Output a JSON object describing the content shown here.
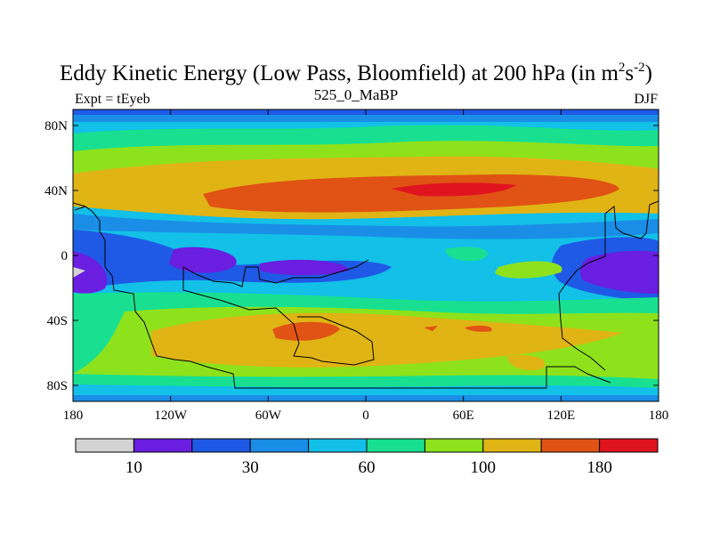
{
  "title": {
    "main": "Eddy Kinetic Energy (Low Pass, Bloomfield) at 200 hPa (in m",
    "exp1": "2",
    "mid": "s",
    "exp2": "-2",
    "close": ")"
  },
  "subtitle": {
    "left": "Expt = tEyeb",
    "center": "525_0_MaBP",
    "right": "DJF"
  },
  "map": {
    "lon_ticks": [
      "180",
      "120W",
      "60W",
      "0",
      "60E",
      "120E",
      "180"
    ],
    "lat_ticks": [
      "80N",
      "40N",
      "0",
      "40S",
      "80S"
    ]
  },
  "colorbar": {
    "colors": [
      "#d3d3d3",
      "#6a1ee0",
      "#1f5ae6",
      "#1a8ee6",
      "#12c0e8",
      "#18e090",
      "#8ee21c",
      "#e0b414",
      "#e05314",
      "#e0141e"
    ],
    "labels": [
      "10",
      "30",
      "60",
      "100",
      "180"
    ]
  },
  "colors": {
    "band0": "#d3d3d3",
    "band1": "#6a1ee0",
    "band2": "#1f5ae6",
    "band3": "#1a8ee6",
    "band4": "#12c0e8",
    "band5": "#18e090",
    "band6": "#8ee21c",
    "band7": "#e0b414",
    "band8": "#e05314",
    "band9": "#e0141e"
  }
}
